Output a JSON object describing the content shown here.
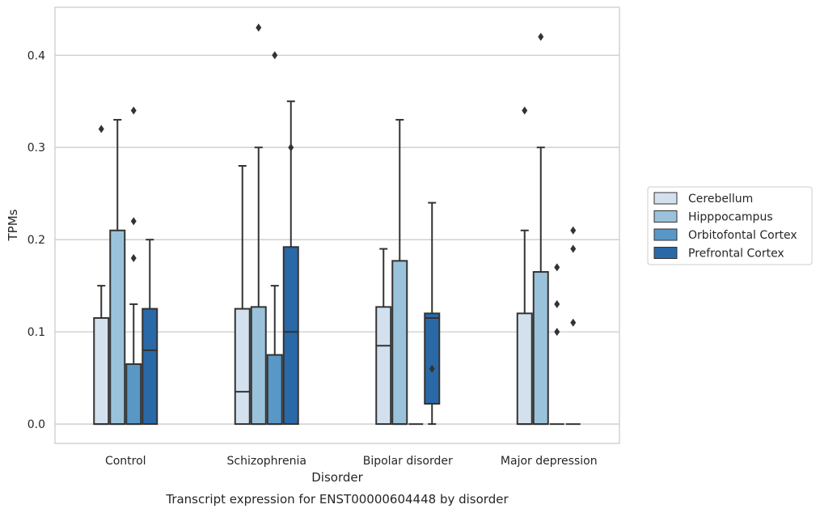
{
  "chart_data": {
    "type": "box",
    "title": "",
    "caption": "Transcript expression for ENST00000604448 by disorder",
    "xlabel": "Disorder",
    "ylabel": "TPMs",
    "ylim": [
      -0.021,
      0.452
    ],
    "yticks": [
      "0.0",
      "0.1",
      "0.2",
      "0.3",
      "0.4"
    ],
    "ytick_values": [
      0.0,
      0.1,
      0.2,
      0.3,
      0.4
    ],
    "grid": "horizontal",
    "legend_position": "right",
    "categories": [
      "Control",
      "Schizophrenia",
      "Bipolar disorder",
      "Major depression"
    ],
    "series": [
      {
        "name": "Cerebellum",
        "color": "#d3e1ef",
        "boxes": [
          {
            "q1": 0.0,
            "median": 0.0,
            "q3": 0.115,
            "whisker_low": 0.0,
            "whisker_high": 0.15,
            "outliers": [
              0.32
            ]
          },
          {
            "q1": 0.0,
            "median": 0.035,
            "q3": 0.125,
            "whisker_low": 0.0,
            "whisker_high": 0.28,
            "outliers": []
          },
          {
            "q1": 0.0,
            "median": 0.085,
            "q3": 0.127,
            "whisker_low": 0.0,
            "whisker_high": 0.19,
            "outliers": []
          },
          {
            "q1": 0.0,
            "median": 0.0,
            "q3": 0.12,
            "whisker_low": 0.0,
            "whisker_high": 0.21,
            "outliers": [
              0.34
            ]
          }
        ]
      },
      {
        "name": "Hipppocampus",
        "color": "#9ac3db",
        "boxes": [
          {
            "q1": 0.0,
            "median": 0.0,
            "q3": 0.21,
            "whisker_low": 0.0,
            "whisker_high": 0.33,
            "outliers": []
          },
          {
            "q1": 0.0,
            "median": 0.0,
            "q3": 0.127,
            "whisker_low": 0.0,
            "whisker_high": 0.3,
            "outliers": [
              0.43
            ]
          },
          {
            "q1": 0.0,
            "median": 0.0,
            "q3": 0.177,
            "whisker_low": 0.0,
            "whisker_high": 0.33,
            "outliers": []
          },
          {
            "q1": 0.0,
            "median": 0.0,
            "q3": 0.165,
            "whisker_low": 0.0,
            "whisker_high": 0.3,
            "outliers": [
              0.42
            ]
          }
        ]
      },
      {
        "name": "Orbitofontal Cortex",
        "color": "#5897c6",
        "boxes": [
          {
            "q1": 0.0,
            "median": 0.0,
            "q3": 0.065,
            "whisker_low": 0.0,
            "whisker_high": 0.13,
            "outliers": [
              0.18,
              0.22,
              0.34
            ]
          },
          {
            "q1": 0.0,
            "median": 0.0,
            "q3": 0.075,
            "whisker_low": 0.0,
            "whisker_high": 0.15,
            "outliers": [
              0.4
            ]
          },
          {
            "q1": 0.0,
            "median": 0.0,
            "q3": 0.0,
            "whisker_low": 0.0,
            "whisker_high": 0.0,
            "outliers": []
          },
          {
            "q1": 0.0,
            "median": 0.0,
            "q3": 0.0,
            "whisker_low": 0.0,
            "whisker_high": 0.0,
            "outliers": [
              0.1,
              0.13,
              0.17
            ]
          }
        ]
      },
      {
        "name": "Prefrontal Cortex",
        "color": "#2a69a7",
        "boxes": [
          {
            "q1": 0.0,
            "median": 0.08,
            "q3": 0.125,
            "whisker_low": 0.0,
            "whisker_high": 0.2,
            "outliers": []
          },
          {
            "q1": 0.0,
            "median": 0.1,
            "q3": 0.192,
            "whisker_low": 0.0,
            "whisker_high": 0.35,
            "outliers": [
              0.3
            ]
          },
          {
            "q1": 0.022,
            "median": 0.115,
            "q3": 0.12,
            "whisker_low": 0.0,
            "whisker_high": 0.24,
            "outliers": [
              0.06
            ]
          },
          {
            "q1": 0.0,
            "median": 0.0,
            "q3": 0.0,
            "whisker_low": 0.0,
            "whisker_high": 0.0,
            "outliers": [
              0.11,
              0.19,
              0.21
            ]
          }
        ]
      }
    ]
  }
}
